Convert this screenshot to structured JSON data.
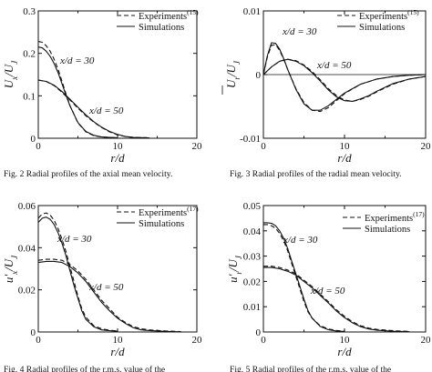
{
  "chart_data": [
    {
      "type": "line",
      "xlabel": "r/d",
      "ylabel": "U_x/U_J",
      "xlim": [
        0,
        20
      ],
      "ylim": [
        0,
        0.3
      ],
      "xticks": [
        "0",
        "10",
        "20"
      ],
      "yticks": [
        "0",
        "0.1",
        "0.2",
        "0.3"
      ],
      "caption": "Fig. 2   Radial profiles of the axial mean velocity.",
      "legend": {
        "position": "top-right",
        "entries": [
          "Experiments",
          "Simulations"
        ],
        "superscript": "(15)"
      },
      "annotations": [
        "x/d = 30",
        "x/d = 50"
      ],
      "series": [
        {
          "name": "Experiments",
          "label": "x/d = 30",
          "style": "dashed",
          "x": [
            0,
            0.5,
            1,
            1.5,
            2,
            2.5,
            3,
            3.5,
            4,
            5,
            6,
            7,
            8,
            9,
            10
          ],
          "y": [
            0.228,
            0.226,
            0.218,
            0.205,
            0.186,
            0.162,
            0.134,
            0.104,
            0.077,
            0.036,
            0.015,
            0.006,
            0.003,
            0.002,
            0.001
          ]
        },
        {
          "name": "Simulations",
          "label": "x/d = 30",
          "style": "solid",
          "x": [
            0,
            0.5,
            1,
            1.5,
            2,
            2.5,
            3,
            3.5,
            4,
            5,
            6,
            7,
            8,
            9,
            10
          ],
          "y": [
            0.215,
            0.213,
            0.205,
            0.193,
            0.176,
            0.154,
            0.128,
            0.101,
            0.076,
            0.037,
            0.016,
            0.007,
            0.003,
            0.002,
            0.001
          ]
        },
        {
          "name": "Experiments",
          "label": "x/d = 50",
          "style": "dashed",
          "x": [
            0,
            1,
            2,
            3,
            4,
            5,
            6,
            7,
            8,
            9,
            10,
            11,
            12,
            14
          ],
          "y": [
            0.137,
            0.134,
            0.124,
            0.108,
            0.09,
            0.071,
            0.053,
            0.038,
            0.025,
            0.015,
            0.008,
            0.004,
            0.002,
            0.001
          ]
        },
        {
          "name": "Simulations",
          "label": "x/d = 50",
          "style": "solid",
          "x": [
            0,
            1,
            2,
            3,
            4,
            5,
            6,
            7,
            8,
            9,
            10,
            11,
            12,
            14
          ],
          "y": [
            0.137,
            0.134,
            0.125,
            0.11,
            0.092,
            0.073,
            0.055,
            0.039,
            0.026,
            0.016,
            0.009,
            0.004,
            0.002,
            0.001
          ]
        }
      ]
    },
    {
      "type": "line",
      "xlabel": "r/d",
      "ylabel": "U_r/U_J",
      "xlim": [
        0,
        20
      ],
      "ylim": [
        -0.01,
        0.01
      ],
      "xticks": [
        "0",
        "10",
        "20"
      ],
      "yticks": [
        "-0.01",
        "0",
        "0.01"
      ],
      "caption": "Fig. 3   Radial profiles of the radial mean velocity.",
      "legend": {
        "position": "top-right",
        "entries": [
          "Experiments",
          "Simulations"
        ],
        "superscript": "(15)"
      },
      "annotations": [
        "x/d = 30",
        "x/d = 50"
      ],
      "series": [
        {
          "name": "Experiments",
          "label": "x/d = 30",
          "style": "dashed",
          "x": [
            0,
            0.5,
            1,
            1.5,
            2,
            2.5,
            3,
            4,
            5,
            6,
            7,
            8,
            9,
            10,
            12,
            14,
            16,
            18,
            20
          ],
          "y": [
            0,
            0.0028,
            0.0046,
            0.0047,
            0.0038,
            0.0024,
            0.0008,
            -0.0022,
            -0.0044,
            -0.0056,
            -0.0058,
            -0.0052,
            -0.0041,
            -0.003,
            -0.0015,
            -0.0007,
            -0.0003,
            -0.0001,
            0
          ]
        },
        {
          "name": "Simulations",
          "label": "x/d = 30",
          "style": "solid",
          "x": [
            0,
            0.5,
            1,
            1.5,
            2,
            2.5,
            3,
            4,
            5,
            6,
            7,
            8,
            9,
            10,
            12,
            14,
            16,
            18,
            20
          ],
          "y": [
            0,
            0.003,
            0.005,
            0.0049,
            0.004,
            0.0025,
            0.0008,
            -0.0023,
            -0.0046,
            -0.0056,
            -0.0056,
            -0.0049,
            -0.0039,
            -0.0029,
            -0.0015,
            -0.0007,
            -0.0003,
            -0.0001,
            0
          ]
        },
        {
          "name": "Experiments",
          "label": "x/d = 50",
          "style": "dashed",
          "x": [
            0,
            1,
            2,
            3,
            4,
            5,
            6,
            7,
            8,
            9,
            10,
            11,
            12,
            13,
            14,
            16,
            18,
            20
          ],
          "y": [
            0,
            0.0012,
            0.0021,
            0.0024,
            0.0022,
            0.0015,
            0.0005,
            -0.0008,
            -0.0022,
            -0.0033,
            -0.004,
            -0.0042,
            -0.0039,
            -0.0034,
            -0.0027,
            -0.0015,
            -0.0007,
            -0.0003
          ]
        },
        {
          "name": "Simulations",
          "label": "x/d = 50",
          "style": "solid",
          "x": [
            0,
            1,
            2,
            3,
            4,
            5,
            6,
            7,
            8,
            9,
            10,
            11,
            12,
            13,
            14,
            16,
            18,
            20
          ],
          "y": [
            0,
            0.0012,
            0.0021,
            0.0024,
            0.0021,
            0.0014,
            0.0003,
            -0.001,
            -0.0024,
            -0.0035,
            -0.0041,
            -0.0042,
            -0.0038,
            -0.0033,
            -0.0026,
            -0.0014,
            -0.0007,
            -0.0003
          ]
        }
      ]
    },
    {
      "type": "line",
      "xlabel": "r/d",
      "ylabel": "u'_x/U_J",
      "xlim": [
        0,
        20
      ],
      "ylim": [
        0,
        0.06
      ],
      "xticks": [
        "0",
        "10",
        "20"
      ],
      "yticks": [
        "0",
        "0.02",
        "0.04",
        "0.06"
      ],
      "caption": "Fig. 4   Radial profiles of the r.m.s. value of the",
      "legend": {
        "position": "top-right",
        "entries": [
          "Experiments",
          "Simulations"
        ],
        "superscript": "(17)"
      },
      "annotations": [
        "x/d = 30",
        "x/d = 50"
      ],
      "series": [
        {
          "name": "Experiments",
          "label": "x/d = 30",
          "style": "dashed",
          "x": [
            0,
            0.5,
            1,
            1.5,
            2,
            2.5,
            3,
            3.5,
            4,
            4.5,
            5,
            5.5,
            6,
            7,
            8,
            9,
            10
          ],
          "y": [
            0.054,
            0.056,
            0.0565,
            0.0555,
            0.053,
            0.049,
            0.044,
            0.038,
            0.031,
            0.024,
            0.017,
            0.011,
            0.007,
            0.003,
            0.0015,
            0.0008,
            0.0005
          ]
        },
        {
          "name": "Simulations",
          "label": "x/d = 30",
          "style": "solid",
          "x": [
            0,
            0.5,
            1,
            1.5,
            2,
            2.5,
            3,
            3.5,
            4,
            4.5,
            5,
            5.5,
            6,
            7,
            8,
            9,
            10
          ],
          "y": [
            0.052,
            0.054,
            0.0545,
            0.0535,
            0.051,
            0.047,
            0.042,
            0.036,
            0.029,
            0.022,
            0.016,
            0.01,
            0.006,
            0.0025,
            0.001,
            0.0006,
            0.0004
          ]
        },
        {
          "name": "Experiments",
          "label": "x/d = 50",
          "style": "dashed",
          "x": [
            0,
            1,
            2,
            3,
            4,
            5,
            6,
            7,
            8,
            9,
            10,
            11,
            12,
            13,
            14,
            16,
            18
          ],
          "y": [
            0.034,
            0.0345,
            0.0345,
            0.034,
            0.032,
            0.029,
            0.025,
            0.02,
            0.015,
            0.011,
            0.007,
            0.0045,
            0.0025,
            0.0015,
            0.001,
            0.0005,
            0.0002
          ]
        },
        {
          "name": "Simulations",
          "label": "x/d = 50",
          "style": "solid",
          "x": [
            0,
            1,
            2,
            3,
            4,
            5,
            6,
            7,
            8,
            9,
            10,
            11,
            12,
            13,
            14,
            16,
            18
          ],
          "y": [
            0.033,
            0.0335,
            0.0335,
            0.033,
            0.031,
            0.028,
            0.024,
            0.019,
            0.014,
            0.01,
            0.0065,
            0.004,
            0.002,
            0.001,
            0.0007,
            0.0003,
            0.0001
          ]
        }
      ]
    },
    {
      "type": "line",
      "xlabel": "r/d",
      "ylabel": "u'_r/U_J",
      "xlim": [
        0,
        20
      ],
      "ylim": [
        0,
        0.05
      ],
      "xticks": [
        "0",
        "10",
        "20"
      ],
      "yticks": [
        "0",
        "0.01",
        "0.02",
        "0.03",
        "0.04",
        "0.05"
      ],
      "caption": "Fig. 5   Radial profiles of the r.m.s. value of the",
      "legend": {
        "position": "top-right",
        "entries": [
          "Experiments",
          "Simulations"
        ],
        "superscript": "(17)"
      },
      "annotations": [
        "x/d = 30",
        "x/d = 50"
      ],
      "series": [
        {
          "name": "Experiments",
          "label": "x/d = 30",
          "style": "dashed",
          "x": [
            0,
            0.5,
            1,
            1.5,
            2,
            2.5,
            3,
            3.5,
            4,
            4.5,
            5,
            5.5,
            6,
            7,
            8,
            9,
            10
          ],
          "y": [
            0.0425,
            0.0425,
            0.042,
            0.041,
            0.039,
            0.036,
            0.032,
            0.027,
            0.022,
            0.017,
            0.012,
            0.008,
            0.0055,
            0.0025,
            0.0012,
            0.0006,
            0.0003
          ]
        },
        {
          "name": "Simulations",
          "label": "x/d = 30",
          "style": "solid",
          "x": [
            0,
            0.5,
            1,
            1.5,
            2,
            2.5,
            3,
            3.5,
            4,
            4.5,
            5,
            5.5,
            6,
            7,
            8,
            9,
            10
          ],
          "y": [
            0.0432,
            0.0432,
            0.043,
            0.042,
            0.04,
            0.037,
            0.033,
            0.028,
            0.023,
            0.018,
            0.013,
            0.0085,
            0.0055,
            0.0022,
            0.0009,
            0.0004,
            0.0002
          ]
        },
        {
          "name": "Experiments",
          "label": "x/d = 50",
          "style": "dashed",
          "x": [
            0,
            1,
            2,
            3,
            4,
            5,
            6,
            7,
            8,
            9,
            10,
            11,
            12,
            13,
            14,
            16,
            18
          ],
          "y": [
            0.026,
            0.026,
            0.0255,
            0.0245,
            0.023,
            0.0205,
            0.018,
            0.015,
            0.012,
            0.0088,
            0.0062,
            0.004,
            0.0025,
            0.0015,
            0.001,
            0.0005,
            0.0002
          ]
        },
        {
          "name": "Simulations",
          "label": "x/d = 50",
          "style": "solid",
          "x": [
            0,
            1,
            2,
            3,
            4,
            5,
            6,
            7,
            8,
            9,
            10,
            11,
            12,
            13,
            14,
            16,
            18
          ],
          "y": [
            0.0255,
            0.0255,
            0.025,
            0.024,
            0.0225,
            0.02,
            0.0175,
            0.0145,
            0.0115,
            0.0083,
            0.0057,
            0.0036,
            0.0021,
            0.0012,
            0.0007,
            0.0003,
            0.0001
          ]
        }
      ]
    }
  ]
}
